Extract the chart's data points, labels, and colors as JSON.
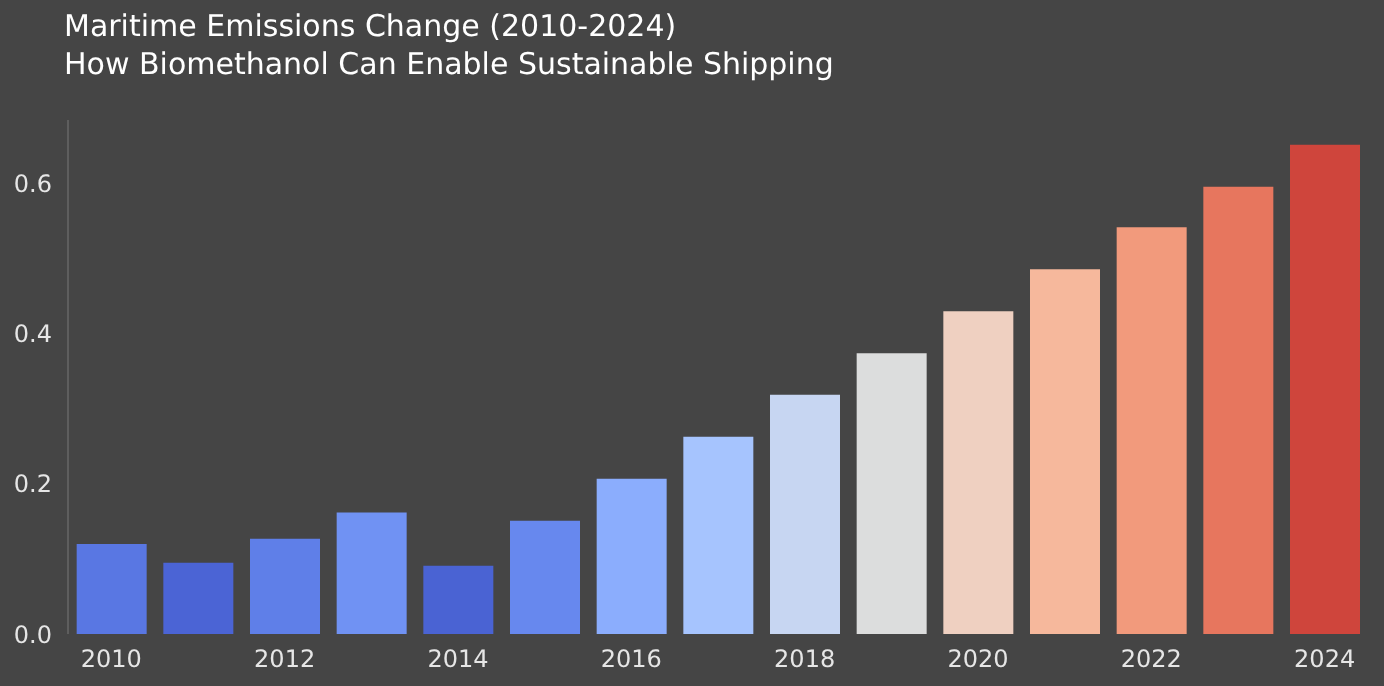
{
  "chart_data": {
    "type": "bar",
    "title": "Maritime Emissions Change (2010-2024)",
    "subtitle": "How Biomethanol Can Enable Sustainable Shipping",
    "categories": [
      "2010",
      null,
      "2012",
      null,
      "2014",
      null,
      "2016",
      null,
      "2018",
      null,
      "2020",
      null,
      "2022",
      null,
      "2024"
    ],
    "values": [
      0.12,
      0.095,
      0.127,
      0.162,
      0.091,
      0.151,
      0.207,
      0.263,
      0.319,
      0.374,
      0.43,
      0.486,
      0.542,
      0.596,
      0.652
    ],
    "colors": [
      "#5977e3",
      "#4b64d5",
      "#5f7fe8",
      "#7092f3",
      "#4a63d3",
      "#6788ee",
      "#8badfd",
      "#a6c4fe",
      "#c7d6f2",
      "#dcdddd",
      "#efd0c1",
      "#f6b89c",
      "#f29a7c",
      "#e7765e",
      "#cf453c"
    ],
    "ylim": [
      0,
      0.685
    ],
    "yticks": [
      {
        "value": 0,
        "label": "0.0"
      },
      {
        "value": 0.2,
        "label": "0.2"
      },
      {
        "value": 0.4,
        "label": "0.4"
      },
      {
        "value": 0.6,
        "label": "0.6"
      }
    ],
    "grid": false,
    "legend": false
  }
}
